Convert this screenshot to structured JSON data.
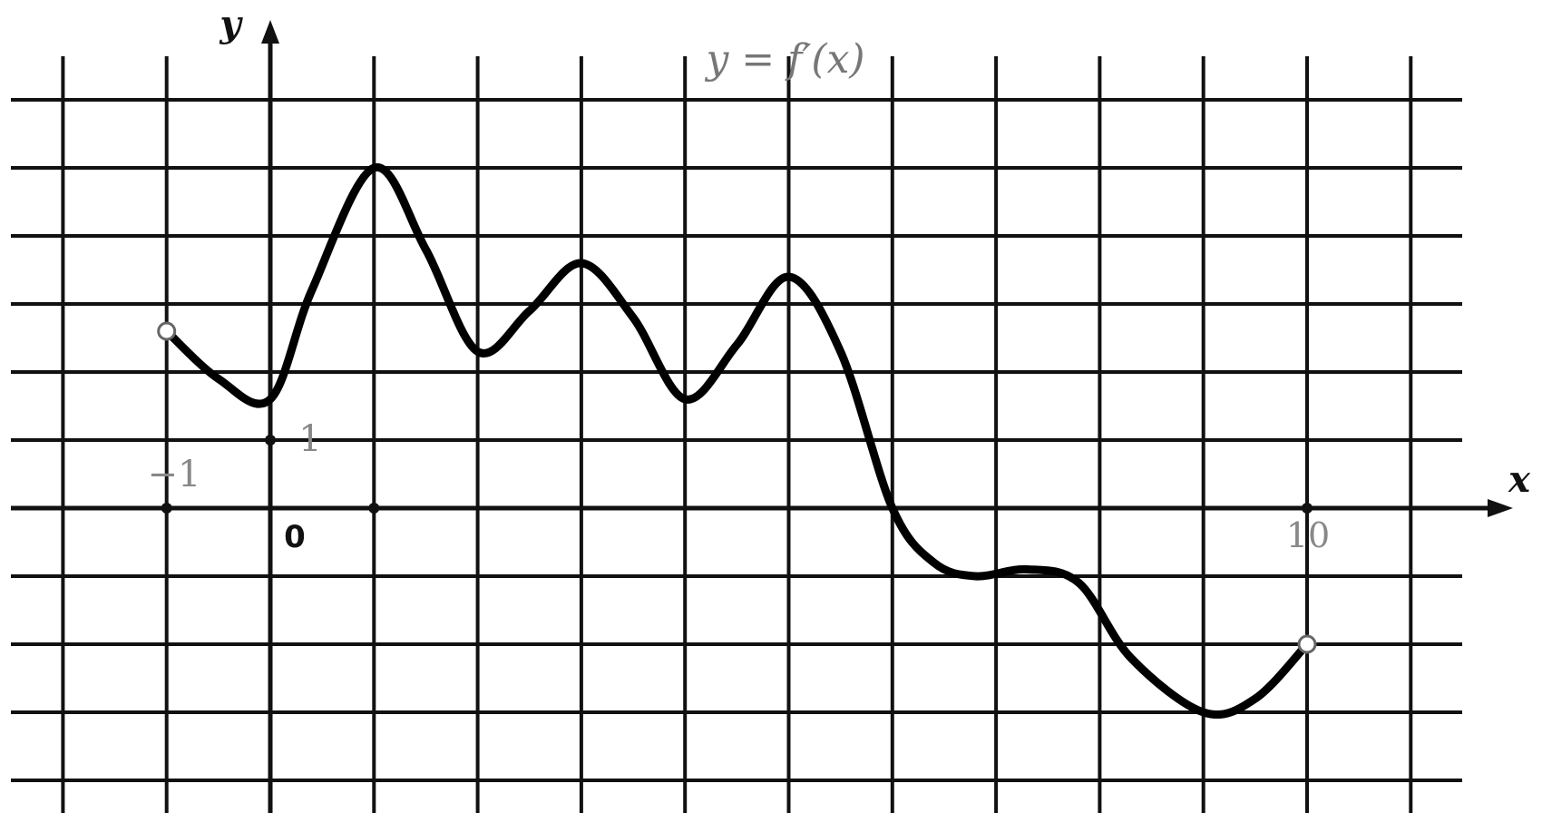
{
  "chart_data": {
    "type": "line",
    "title": "y = f′(x)",
    "xlabel": "x",
    "ylabel": "y",
    "origin_label": "0",
    "tick_labels": {
      "x_neg": "−1",
      "x_end": "10",
      "y_one": "1"
    },
    "xlim": [
      -2.5,
      11.5
    ],
    "ylim": [
      -4.5,
      6.2
    ],
    "grid": true,
    "series": [
      {
        "values": [
          {
            "x": -1.0,
            "y": 2.6
          },
          {
            "x": -0.5,
            "y": 1.9
          },
          {
            "x": 0.0,
            "y": 1.6
          },
          {
            "x": 0.4,
            "y": 3.2
          },
          {
            "x": 1.0,
            "y": 5.0
          },
          {
            "x": 1.5,
            "y": 3.8
          },
          {
            "x": 2.0,
            "y": 2.3
          },
          {
            "x": 2.5,
            "y": 2.9
          },
          {
            "x": 3.0,
            "y": 3.6
          },
          {
            "x": 3.5,
            "y": 2.8
          },
          {
            "x": 4.0,
            "y": 1.6
          },
          {
            "x": 4.5,
            "y": 2.4
          },
          {
            "x": 5.0,
            "y": 3.4
          },
          {
            "x": 5.5,
            "y": 2.3
          },
          {
            "x": 6.0,
            "y": 0.0
          },
          {
            "x": 6.4,
            "y": -0.8
          },
          {
            "x": 6.8,
            "y": -1.0
          },
          {
            "x": 7.3,
            "y": -0.9
          },
          {
            "x": 7.8,
            "y": -1.1
          },
          {
            "x": 8.3,
            "y": -2.2
          },
          {
            "x": 9.0,
            "y": -3.0
          },
          {
            "x": 9.5,
            "y": -2.8
          },
          {
            "x": 10.0,
            "y": -2.0
          }
        ],
        "endpoints": "open"
      }
    ]
  }
}
